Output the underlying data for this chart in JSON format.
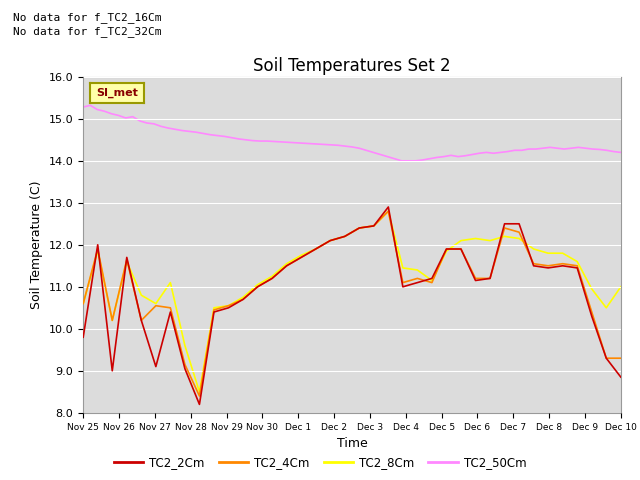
{
  "title": "Soil Temperatures Set 2",
  "ylabel": "Soil Temperature (C)",
  "xlabel": "Time",
  "ylim": [
    8.0,
    16.0
  ],
  "yticks": [
    8.0,
    9.0,
    10.0,
    11.0,
    12.0,
    13.0,
    14.0,
    15.0,
    16.0
  ],
  "background_color": "#dcdcdc",
  "fig_background": "#ffffff",
  "no_data_texts": [
    "No data for f_TC2_16Cm",
    "No data for f_TC2_32Cm"
  ],
  "si_met_label": "SI_met",
  "xtick_labels": [
    "Nov 25",
    "Nov 26",
    "Nov 27",
    "Nov 28",
    "Nov 29",
    "Nov 30",
    "Dec 1",
    "Dec 2",
    "Dec 3",
    "Dec 4",
    "Dec 5",
    "Dec 6",
    "Dec 7",
    "Dec 8",
    "Dec 9",
    "Dec 10"
  ],
  "legend_entries": [
    {
      "label": "TC2_2Cm",
      "color": "#cc0000"
    },
    {
      "label": "TC2_4Cm",
      "color": "#ff8800"
    },
    {
      "label": "TC2_8Cm",
      "color": "#ffff00"
    },
    {
      "label": "TC2_50Cm",
      "color": "#ff88ff"
    }
  ],
  "tc2_2cm": [
    9.8,
    12.0,
    9.0,
    11.7,
    10.2,
    9.1,
    10.4,
    9.05,
    8.2,
    10.4,
    10.5,
    10.7,
    11.0,
    11.2,
    11.5,
    11.7,
    11.9,
    12.1,
    12.2,
    12.4,
    12.45,
    12.9,
    11.0,
    11.1,
    11.2,
    11.9,
    11.9,
    11.15,
    11.2,
    12.5,
    12.5,
    11.5,
    11.45,
    11.5,
    11.45,
    10.3,
    9.3,
    8.85
  ],
  "tc2_4cm": [
    10.6,
    11.9,
    10.2,
    11.65,
    10.2,
    10.55,
    10.5,
    9.15,
    8.4,
    10.45,
    10.55,
    10.7,
    11.0,
    11.2,
    11.5,
    11.7,
    11.9,
    12.1,
    12.2,
    12.4,
    12.45,
    12.8,
    11.1,
    11.2,
    11.1,
    11.9,
    11.9,
    11.2,
    11.2,
    12.4,
    12.3,
    11.55,
    11.5,
    11.55,
    11.5,
    10.4,
    9.3,
    9.3
  ],
  "tc2_8cm": [
    10.6,
    11.85,
    10.2,
    11.6,
    10.8,
    10.6,
    11.1,
    9.6,
    8.5,
    10.5,
    10.55,
    10.75,
    11.05,
    11.25,
    11.55,
    11.75,
    11.9,
    12.1,
    12.2,
    12.4,
    12.45,
    12.8,
    11.45,
    11.4,
    11.15,
    11.85,
    12.1,
    12.15,
    12.1,
    12.2,
    12.15,
    11.9,
    11.8,
    11.8,
    11.6,
    10.95,
    10.5,
    11.0
  ],
  "tc2_50cm": [
    15.28,
    15.32,
    15.22,
    15.18,
    15.12,
    15.08,
    15.02,
    15.05,
    14.95,
    14.9,
    14.88,
    14.82,
    14.78,
    14.75,
    14.72,
    14.7,
    14.68,
    14.65,
    14.62,
    14.6,
    14.58,
    14.55,
    14.52,
    14.5,
    14.48,
    14.47,
    14.47,
    14.46,
    14.45,
    14.44,
    14.43,
    14.42,
    14.41,
    14.4,
    14.39,
    14.38,
    14.37,
    14.35,
    14.33,
    14.3,
    14.25,
    14.2,
    14.15,
    14.1,
    14.05,
    14.0,
    14.0,
    14.0,
    14.02,
    14.05,
    14.08,
    14.1,
    14.13,
    14.1,
    14.12,
    14.15,
    14.18,
    14.2,
    14.18,
    14.2,
    14.22,
    14.25,
    14.25,
    14.28,
    14.28,
    14.3,
    14.32,
    14.3,
    14.28,
    14.3,
    14.32,
    14.3,
    14.28,
    14.27,
    14.25,
    14.22,
    14.2
  ],
  "colors": {
    "tc2_2cm": "#cc0000",
    "tc2_4cm": "#ff8800",
    "tc2_8cm": "#ffff00",
    "tc2_50cm": "#ff88ff"
  },
  "title_fontsize": 12,
  "axis_label_fontsize": 9,
  "tick_fontsize": 8
}
